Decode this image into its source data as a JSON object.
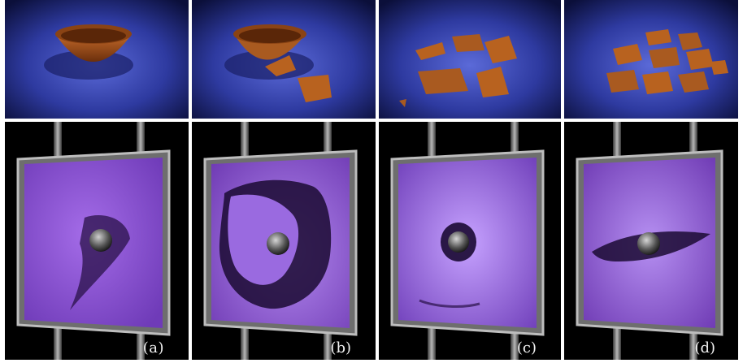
{
  "figure": {
    "top_row": {
      "panels": [
        {
          "state": "intact-bowl"
        },
        {
          "state": "cracked-bowl"
        },
        {
          "state": "broken-bowl"
        },
        {
          "state": "shattered-bowl"
        }
      ]
    },
    "bottom_row": {
      "panels": [
        {
          "label": "(a)",
          "state": "torn-membrane"
        },
        {
          "label": "(b)",
          "state": "large-tear"
        },
        {
          "label": "(c)",
          "state": "stretched-hole"
        },
        {
          "label": "(d)",
          "state": "slit-tear"
        }
      ]
    }
  }
}
